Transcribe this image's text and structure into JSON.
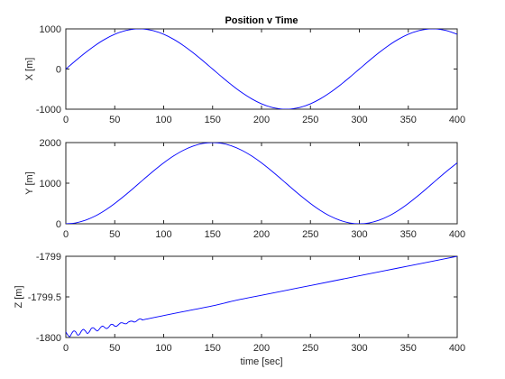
{
  "chart_data": [
    {
      "type": "line",
      "title": "Position v Time",
      "xlabel": "",
      "ylabel": "X [m]",
      "xlim": [
        0,
        400
      ],
      "ylim": [
        -1000,
        1000
      ],
      "xticks": [
        0,
        50,
        100,
        150,
        200,
        250,
        300,
        350,
        400
      ],
      "yticks": [
        -1000,
        0,
        1000
      ],
      "ytick_labels": [
        "-1000",
        "0",
        "1000"
      ],
      "grid": false,
      "series": [
        {
          "color": "#0000ff",
          "x": [
            0,
            10,
            20,
            30,
            40,
            50,
            60,
            70,
            75,
            80,
            90,
            100,
            110,
            120,
            130,
            140,
            150,
            160,
            170,
            180,
            190,
            200,
            210,
            220,
            225,
            230,
            240,
            250,
            260,
            270,
            280,
            290,
            300,
            310,
            320,
            330,
            340,
            350,
            360,
            370,
            375,
            380,
            390,
            400
          ],
          "y": [
            0,
            208,
            407,
            588,
            743,
            866,
            951,
            995,
            1000,
            995,
            951,
            866,
            743,
            588,
            407,
            208,
            0,
            -208,
            -407,
            -588,
            -743,
            -866,
            -951,
            -995,
            -1000,
            -995,
            -951,
            -866,
            -743,
            -588,
            -407,
            -208,
            0,
            208,
            407,
            588,
            743,
            866,
            951,
            995,
            1000,
            995,
            951,
            866
          ]
        }
      ]
    },
    {
      "type": "line",
      "title": "",
      "xlabel": "",
      "ylabel": "Y [m]",
      "xlim": [
        0,
        400
      ],
      "ylim": [
        0,
        2000
      ],
      "xticks": [
        0,
        50,
        100,
        150,
        200,
        250,
        300,
        350,
        400
      ],
      "yticks": [
        0,
        1000,
        2000
      ],
      "ytick_labels": [
        "0",
        "1000",
        "2000"
      ],
      "grid": false,
      "series": [
        {
          "color": "#0000ff",
          "x": [
            0,
            10,
            20,
            30,
            40,
            50,
            60,
            70,
            80,
            90,
            100,
            110,
            120,
            130,
            140,
            150,
            160,
            170,
            180,
            190,
            200,
            210,
            220,
            230,
            240,
            250,
            260,
            270,
            280,
            290,
            300,
            310,
            320,
            330,
            340,
            350,
            360,
            370,
            380,
            390,
            400
          ],
          "y": [
            0,
            22,
            87,
            191,
            331,
            500,
            691,
            895,
            1105,
            1309,
            1500,
            1669,
            1809,
            1913,
            1978,
            2000,
            1978,
            1913,
            1809,
            1669,
            1500,
            1309,
            1105,
            895,
            691,
            500,
            331,
            191,
            87,
            22,
            0,
            22,
            87,
            191,
            331,
            500,
            691,
            895,
            1105,
            1309,
            1500
          ]
        }
      ]
    },
    {
      "type": "line",
      "title": "",
      "xlabel": "time [sec]",
      "ylabel": "Z [m]",
      "xlim": [
        0,
        400
      ],
      "ylim": [
        -1800,
        -1799
      ],
      "xticks": [
        0,
        50,
        100,
        150,
        200,
        250,
        300,
        350,
        400
      ],
      "yticks": [
        -1800,
        -1799.5,
        -1799
      ],
      "ytick_labels": [
        "-1800",
        "-1799.5",
        "-1799"
      ],
      "grid": false,
      "series": [
        {
          "color": "#0000ff",
          "x": [
            0,
            2,
            4,
            6,
            8,
            10,
            12,
            14,
            16,
            18,
            20,
            22,
            24,
            26,
            28,
            30,
            32,
            34,
            36,
            38,
            40,
            42,
            44,
            46,
            48,
            50,
            52,
            54,
            56,
            58,
            60,
            62,
            64,
            66,
            68,
            70,
            72,
            74,
            76,
            78,
            80,
            100,
            125,
            150,
            175,
            200,
            225,
            250,
            275,
            300,
            325,
            350,
            375,
            400
          ],
          "y": [
            -1799.93,
            -1799.97,
            -1799.99,
            -1799.95,
            -1799.92,
            -1799.93,
            -1799.97,
            -1799.96,
            -1799.92,
            -1799.9,
            -1799.92,
            -1799.95,
            -1799.93,
            -1799.89,
            -1799.88,
            -1799.9,
            -1799.92,
            -1799.9,
            -1799.87,
            -1799.86,
            -1799.88,
            -1799.89,
            -1799.87,
            -1799.84,
            -1799.84,
            -1799.86,
            -1799.86,
            -1799.84,
            -1799.82,
            -1799.82,
            -1799.83,
            -1799.83,
            -1799.81,
            -1799.8,
            -1799.8,
            -1799.81,
            -1799.8,
            -1799.78,
            -1799.77,
            -1799.78,
            -1799.78,
            -1799.73,
            -1799.67,
            -1799.61,
            -1799.54,
            -1799.48,
            -1799.42,
            -1799.36,
            -1799.3,
            -1799.24,
            -1799.18,
            -1799.12,
            -1799.06,
            -1799.0
          ]
        }
      ]
    }
  ]
}
